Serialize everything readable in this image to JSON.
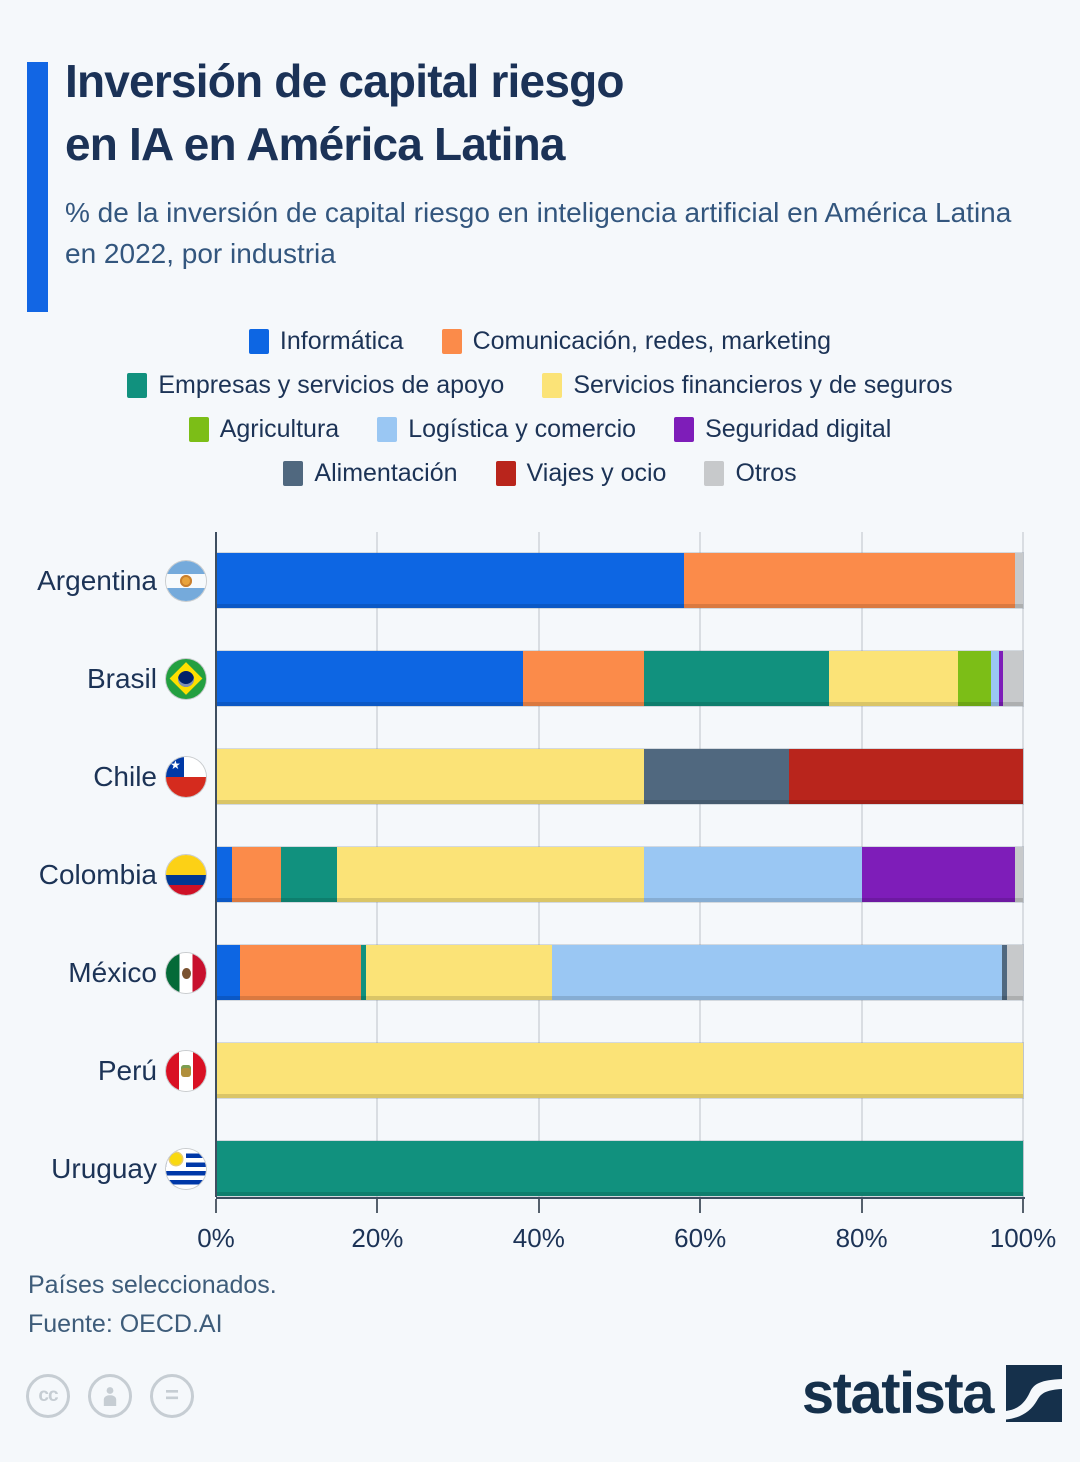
{
  "header": {
    "title_line1": "Inversión de capital riesgo",
    "title_line2": "en IA en América Latina",
    "subtitle": "% de la inversión de capital riesgo en inteligencia artificial en América Latina en 2022, por industria"
  },
  "legend": {
    "rows": [
      [
        {
          "label": "Informática",
          "color": "#0D66E3"
        },
        {
          "label": "Comunicación, redes, marketing",
          "color": "#FB8B4A"
        }
      ],
      [
        {
          "label": "Empresas y servicios de apoyo",
          "color": "#11917E"
        },
        {
          "label": "Servicios financieros y de seguros",
          "color": "#FBE377"
        }
      ],
      [
        {
          "label": "Agricultura",
          "color": "#7CBE17"
        },
        {
          "label": "Logística y comercio",
          "color": "#9AC7F3"
        },
        {
          "label": "Seguridad digital",
          "color": "#7E1DB9"
        }
      ],
      [
        {
          "label": "Alimentación",
          "color": "#50687F"
        },
        {
          "label": "Viajes y ocio",
          "color": "#B9251C"
        },
        {
          "label": "Otros",
          "color": "#C7C9CB"
        }
      ]
    ]
  },
  "chart_data": {
    "type": "bar",
    "stacked": true,
    "orientation": "horizontal",
    "title": "Inversión de capital riesgo en IA en América Latina",
    "xlabel": "",
    "ylabel": "",
    "xlim": [
      0,
      100
    ],
    "x_ticks": [
      "0%",
      "20%",
      "40%",
      "60%",
      "80%",
      "100%"
    ],
    "grid": true,
    "legend_position": "top",
    "categories": [
      "Argentina",
      "Brasil",
      "Chile",
      "Colombia",
      "México",
      "Perú",
      "Uruguay"
    ],
    "flag_slugs": [
      "argentina",
      "brasil",
      "chile",
      "colombia",
      "mexico",
      "peru",
      "uruguay"
    ],
    "series": [
      {
        "name": "Informática",
        "values": [
          58,
          38,
          0,
          2,
          3,
          0,
          0
        ]
      },
      {
        "name": "Comunicación, redes, marketing",
        "values": [
          41,
          15,
          0,
          6,
          15,
          0,
          0
        ]
      },
      {
        "name": "Empresas y servicios de apoyo",
        "values": [
          0,
          23,
          0,
          7,
          0.6,
          0,
          100
        ]
      },
      {
        "name": "Servicios financieros y de seguros",
        "values": [
          0,
          16,
          53,
          38,
          23,
          100,
          0
        ]
      },
      {
        "name": "Agricultura",
        "values": [
          0,
          4,
          0,
          0,
          0,
          0,
          0
        ]
      },
      {
        "name": "Logística y comercio",
        "values": [
          0,
          1,
          0,
          27,
          55.8,
          0,
          0
        ]
      },
      {
        "name": "Seguridad digital",
        "values": [
          0,
          0.5,
          0,
          19,
          0,
          0,
          0
        ]
      },
      {
        "name": "Alimentación",
        "values": [
          0,
          0,
          18,
          0,
          0.6,
          0,
          0
        ]
      },
      {
        "name": "Viajes y ocio",
        "values": [
          0,
          0,
          29,
          0,
          0,
          0,
          0
        ]
      },
      {
        "name": "Otros",
        "values": [
          1,
          2.5,
          0,
          1,
          2,
          0,
          0
        ]
      }
    ]
  },
  "footer": {
    "note": "Países seleccionados.",
    "source": "Fuente: OECD.AI"
  },
  "branding": {
    "logo_text": "statista",
    "cc_label": "cc",
    "eq_label": "="
  }
}
